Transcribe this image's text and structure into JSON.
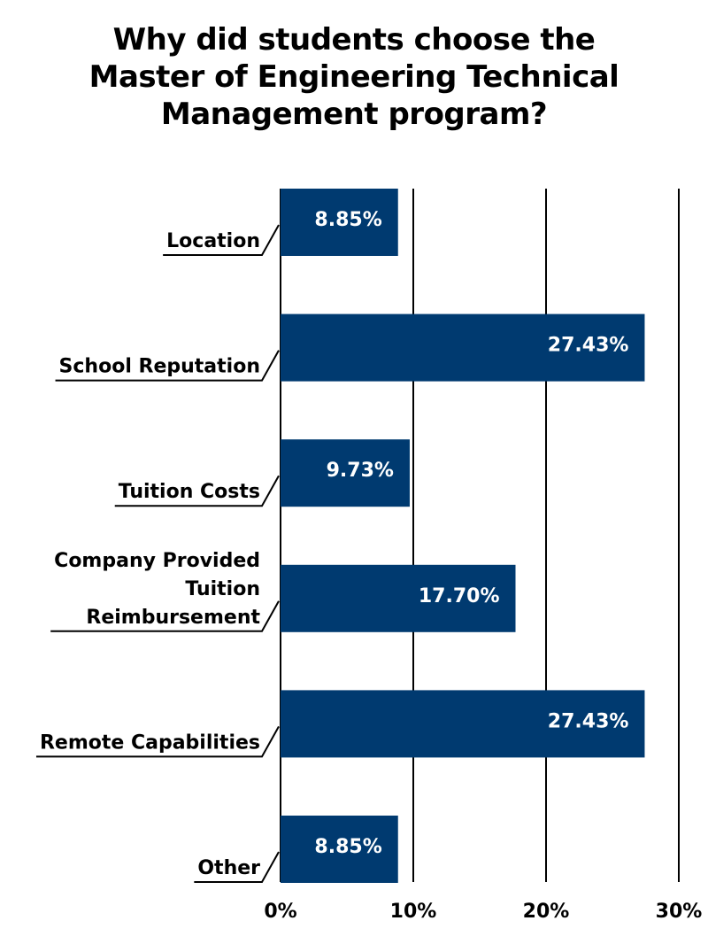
{
  "chart_data": {
    "type": "bar",
    "orientation": "horizontal",
    "title_lines": [
      "Why did students choose the",
      "Master of Engineering Technical",
      "Management program?"
    ],
    "categories": [
      [
        "Location"
      ],
      [
        "School Reputation"
      ],
      [
        "Tuition Costs"
      ],
      [
        "Company Provided",
        "Tuition",
        "Reimbursement"
      ],
      [
        "Remote Capabilities"
      ],
      [
        "Other"
      ]
    ],
    "values": [
      8.85,
      27.43,
      9.73,
      17.7,
      27.43,
      8.85
    ],
    "data_labels": [
      "8.85%",
      "27.43%",
      "9.73%",
      "17.70%",
      "27.43%",
      "8.85%"
    ],
    "xlim": [
      0,
      30
    ],
    "ticks": [
      0,
      10,
      20,
      30
    ],
    "tick_labels": [
      "0%",
      "10%",
      "20%",
      "30%"
    ],
    "grid": true,
    "legend": "none",
    "xlabel": "",
    "ylabel": "",
    "bar_color": "#003a70",
    "label_color": "#ffffff",
    "gridline_color": "#000000"
  }
}
